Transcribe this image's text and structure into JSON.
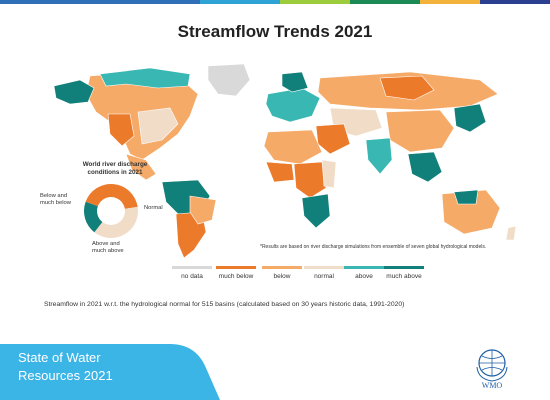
{
  "header": {
    "title": "Streamflow Trends 2021",
    "strip_colors": [
      "#2f6fb7",
      "#2fa3d6",
      "#9ccb3b",
      "#1c8a57",
      "#f3b23a",
      "#2a3f8f"
    ]
  },
  "map": {
    "colors": {
      "no_data": "#d9d9d9",
      "much_below": "#ec7a2b",
      "below": "#f5aa68",
      "normal": "#f1dcc8",
      "above": "#38b7b3",
      "much_above": "#12807a"
    },
    "footnote": "*Results are based on river discharge simulations from ensemble of seven global hydrological models."
  },
  "inset": {
    "title_line1": "World river discharge",
    "title_line2": "conditions in 2021",
    "label_below_1": "Below and",
    "label_below_2": "much below",
    "label_normal": "Normal",
    "label_above_1": "Above and",
    "label_above_2": "much above",
    "shares": {
      "below_and_much_below": 0.42,
      "normal": 0.38,
      "above_and_much_above": 0.2
    }
  },
  "legend": {
    "items": [
      {
        "label": "no data",
        "color": "#d9d9d9"
      },
      {
        "label": "much below",
        "color": "#ec7a2b"
      },
      {
        "label": "below",
        "color": "#f5aa68"
      },
      {
        "label": "normal",
        "color": "#f1dcc8"
      },
      {
        "label": "above",
        "color": "#38b7b3"
      },
      {
        "label": "much above",
        "color": "#12807a"
      }
    ]
  },
  "caption": "Streamflow in 2021 w.r.t. the hydrological normal for 515 basins (calculated based on 30 years historic data, 1991-2020)",
  "footer": {
    "line1": "State of Water",
    "line2": "Resources 2021",
    "band_color": "#3bb4e6",
    "logo_text": "WMO"
  }
}
